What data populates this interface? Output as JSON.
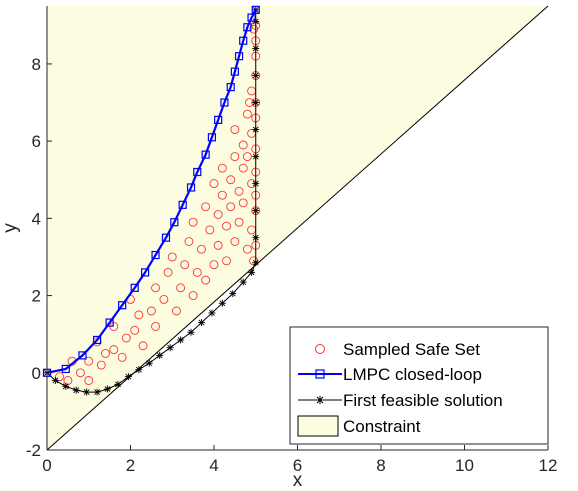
{
  "chart_data": {
    "type": "scatter",
    "title": "",
    "xlabel": "x",
    "ylabel": "y",
    "xlim": [
      0,
      12
    ],
    "ylim": [
      -2,
      9.5
    ],
    "x_ticks": [
      0,
      2,
      4,
      6,
      8,
      10,
      12
    ],
    "y_ticks": [
      -2,
      0,
      2,
      4,
      6,
      8
    ],
    "x_tick_labels": [
      "0",
      "2",
      "4",
      "6",
      "8",
      "10",
      "12"
    ],
    "y_tick_labels": [
      "-2",
      "0",
      "2",
      "4",
      "6",
      "8"
    ],
    "grid": false,
    "legend_position": "bottom-right",
    "constraint_line": {
      "x1": 0,
      "y1": -2,
      "x2": 12,
      "y2": 9.5
    },
    "series": [
      {
        "name": "Sampled Safe Set",
        "marker": "circle",
        "color": "#ff3333",
        "points": [
          [
            0.3,
            -0.1
          ],
          [
            0.5,
            -0.2
          ],
          [
            0.8,
            0.0
          ],
          [
            0.6,
            0.3
          ],
          [
            1.0,
            0.3
          ],
          [
            1.0,
            -0.2
          ],
          [
            1.3,
            0.2
          ],
          [
            1.4,
            0.5
          ],
          [
            1.2,
            0.8
          ],
          [
            1.6,
            0.6
          ],
          [
            1.8,
            0.4
          ],
          [
            1.9,
            0.9
          ],
          [
            1.6,
            1.2
          ],
          [
            2.1,
            1.1
          ],
          [
            2.3,
            0.7
          ],
          [
            2.2,
            1.5
          ],
          [
            2.0,
            1.9
          ],
          [
            2.5,
            1.6
          ],
          [
            2.6,
            1.2
          ],
          [
            2.8,
            1.9
          ],
          [
            2.6,
            2.2
          ],
          [
            2.9,
            2.6
          ],
          [
            3.1,
            1.6
          ],
          [
            3.2,
            2.2
          ],
          [
            3.0,
            3.0
          ],
          [
            3.3,
            2.8
          ],
          [
            3.5,
            2.0
          ],
          [
            3.4,
            3.4
          ],
          [
            3.6,
            2.6
          ],
          [
            3.7,
            3.2
          ],
          [
            3.5,
            3.9
          ],
          [
            3.8,
            2.4
          ],
          [
            3.9,
            3.7
          ],
          [
            3.8,
            4.3
          ],
          [
            4.0,
            2.8
          ],
          [
            4.1,
            3.3
          ],
          [
            4.0,
            4.9
          ],
          [
            4.1,
            4.1
          ],
          [
            4.2,
            4.6
          ],
          [
            4.3,
            2.9
          ],
          [
            4.3,
            3.8
          ],
          [
            4.2,
            5.3
          ],
          [
            4.4,
            5.0
          ],
          [
            4.4,
            4.3
          ],
          [
            4.5,
            3.4
          ],
          [
            4.5,
            5.6
          ],
          [
            4.6,
            4.7
          ],
          [
            4.6,
            3.9
          ],
          [
            4.5,
            6.3
          ],
          [
            4.7,
            5.9
          ],
          [
            4.7,
            5.3
          ],
          [
            4.7,
            4.4
          ],
          [
            4.8,
            3.2
          ],
          [
            4.8,
            6.7
          ],
          [
            4.8,
            5.6
          ],
          [
            4.9,
            4.9
          ],
          [
            4.9,
            6.2
          ],
          [
            4.9,
            7.3
          ],
          [
            4.9,
            3.7
          ],
          [
            5.0,
            4.2
          ],
          [
            5.0,
            5.2
          ],
          [
            5.0,
            5.8
          ],
          [
            5.0,
            6.6
          ],
          [
            5.0,
            7.0
          ],
          [
            5.0,
            7.7
          ],
          [
            5.0,
            8.2
          ],
          [
            5.0,
            8.6
          ],
          [
            5.0,
            9.0
          ],
          [
            4.95,
            8.9
          ],
          [
            4.85,
            7.0
          ],
          [
            5.0,
            4.6
          ],
          [
            5.0,
            3.3
          ],
          [
            4.95,
            2.9
          ]
        ]
      },
      {
        "name": "LMPC closed-loop",
        "marker": "square",
        "color": "#0000ff",
        "points": [
          [
            0,
            0
          ],
          [
            0.45,
            0.1
          ],
          [
            0.85,
            0.45
          ],
          [
            1.2,
            0.85
          ],
          [
            1.5,
            1.3
          ],
          [
            1.8,
            1.75
          ],
          [
            2.1,
            2.2
          ],
          [
            2.35,
            2.6
          ],
          [
            2.6,
            3.05
          ],
          [
            2.85,
            3.5
          ],
          [
            3.05,
            3.9
          ],
          [
            3.25,
            4.35
          ],
          [
            3.45,
            4.8
          ],
          [
            3.6,
            5.2
          ],
          [
            3.8,
            5.65
          ],
          [
            3.95,
            6.1
          ],
          [
            4.1,
            6.55
          ],
          [
            4.25,
            7.0
          ],
          [
            4.4,
            7.4
          ],
          [
            4.5,
            7.8
          ],
          [
            4.6,
            8.2
          ],
          [
            4.7,
            8.6
          ],
          [
            4.8,
            8.95
          ],
          [
            4.9,
            9.2
          ],
          [
            5.0,
            9.4
          ]
        ]
      },
      {
        "name": "First feasible solution",
        "marker": "star",
        "color": "#000000",
        "points": [
          [
            0,
            0
          ],
          [
            0.2,
            -0.2
          ],
          [
            0.45,
            -0.35
          ],
          [
            0.7,
            -0.45
          ],
          [
            0.95,
            -0.5
          ],
          [
            1.2,
            -0.5
          ],
          [
            1.45,
            -0.42
          ],
          [
            1.7,
            -0.3
          ],
          [
            1.95,
            -0.1
          ],
          [
            2.2,
            0.08
          ],
          [
            2.45,
            0.25
          ],
          [
            2.7,
            0.45
          ],
          [
            2.95,
            0.65
          ],
          [
            3.2,
            0.85
          ],
          [
            3.45,
            1.05
          ],
          [
            3.7,
            1.3
          ],
          [
            3.95,
            1.55
          ],
          [
            4.2,
            1.8
          ],
          [
            4.45,
            2.05
          ],
          [
            4.7,
            2.35
          ],
          [
            4.9,
            2.6
          ],
          [
            5.0,
            2.85
          ],
          [
            5.0,
            3.5
          ],
          [
            5.0,
            4.2
          ],
          [
            5.0,
            4.9
          ],
          [
            5.0,
            5.6
          ],
          [
            5.0,
            6.3
          ],
          [
            5.0,
            7.0
          ],
          [
            5.0,
            7.7
          ],
          [
            5.0,
            8.4
          ],
          [
            5.0,
            9.1
          ],
          [
            5.0,
            9.4
          ]
        ]
      },
      {
        "name": "Constraint",
        "marker": "fill",
        "color": "#fcfce0"
      }
    ]
  }
}
